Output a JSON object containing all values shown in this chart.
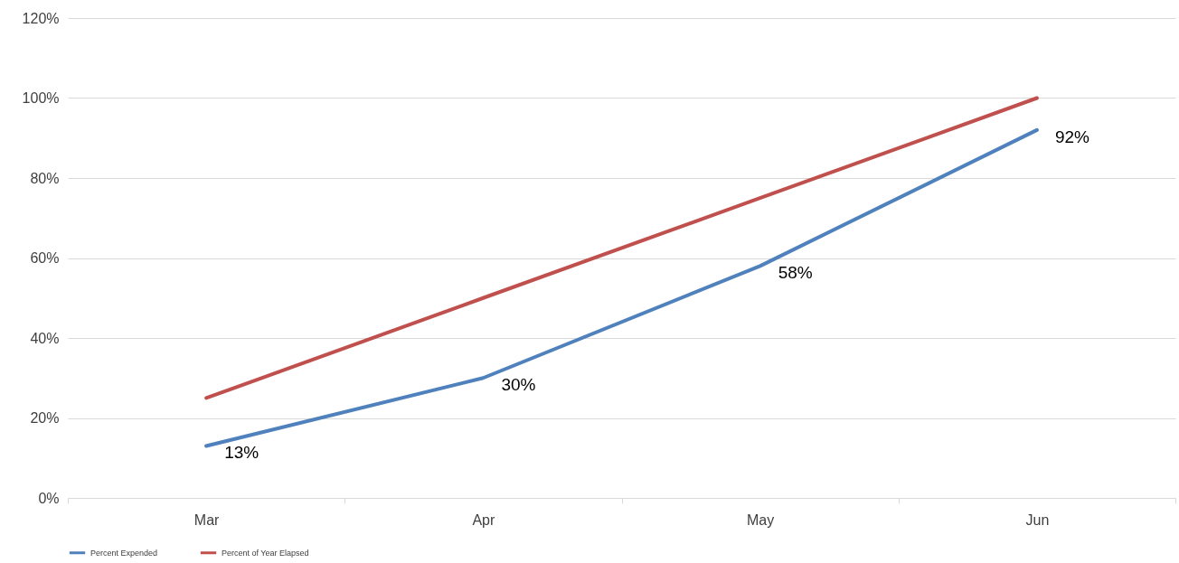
{
  "chart_data": {
    "type": "line",
    "categories": [
      "Mar",
      "Apr",
      "May",
      "Jun"
    ],
    "series": [
      {
        "name": "Percent Expended",
        "color": "#4f81bd",
        "values": [
          13,
          30,
          58,
          92
        ],
        "value_labels": [
          "13%",
          "30%",
          "58%",
          "92%"
        ]
      },
      {
        "name": "Percent of Year Elapsed",
        "color": "#c0504d",
        "values": [
          25,
          50,
          75,
          100
        ]
      }
    ],
    "ylim": [
      0,
      120
    ],
    "yticks": [
      {
        "value": 0,
        "label": "0%"
      },
      {
        "value": 20,
        "label": "20%"
      },
      {
        "value": 40,
        "label": "40%"
      },
      {
        "value": 60,
        "label": "60%"
      },
      {
        "value": 80,
        "label": "80%"
      },
      {
        "value": 100,
        "label": "100%"
      },
      {
        "value": 120,
        "label": "120%"
      }
    ],
    "grid": "y",
    "legend": "bottom",
    "marker": "none",
    "line_style": "solid"
  }
}
